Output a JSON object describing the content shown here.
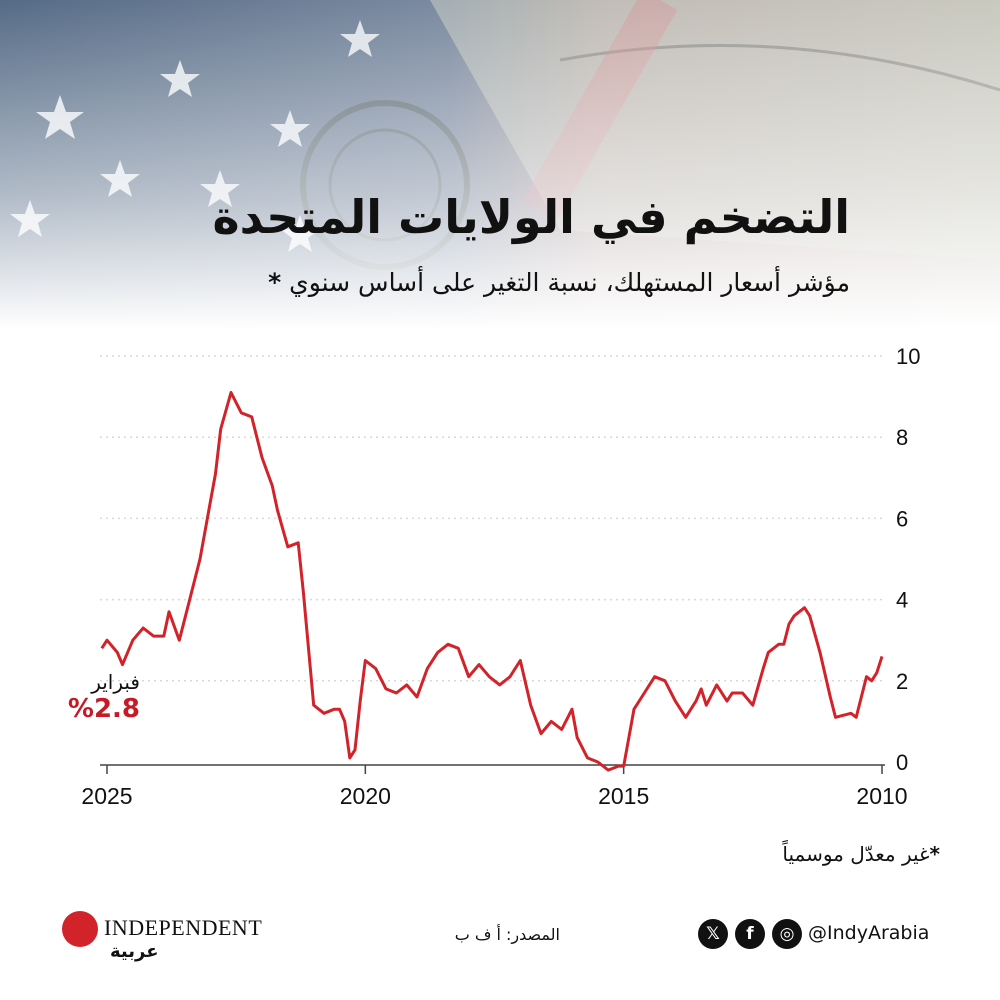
{
  "header": {
    "title": "التضخم في الولايات المتحدة",
    "subtitle": "مؤشر أسعار المستهلك، نسبة التغير على أساس سنوي",
    "subtitle_marker": "*"
  },
  "latest": {
    "label": "فبراير",
    "value": "%2.8"
  },
  "footnote": {
    "marker": "*",
    "text": "غير معدّل موسمياً"
  },
  "footer": {
    "logo_text": "INDEPENDENT",
    "logo_sub": "عربية",
    "source": "المصدر: أ ف ب",
    "handle": "@IndyArabia",
    "icons": [
      "x-icon",
      "facebook-icon",
      "instagram-icon"
    ]
  },
  "colors": {
    "line": "#d2232a",
    "accent": "#c61a27",
    "grid": "#d9d9d9"
  },
  "chart_data": {
    "type": "line",
    "title": "التضخم في الولايات المتحدة",
    "subtitle": "مؤشر أسعار المستهلك، نسبة التغير على أساس سنوي",
    "xlabel": "",
    "ylabel": "",
    "x_axis_direction": "reversed",
    "xlim": [
      2010,
      2025.1
    ],
    "ylim": [
      0,
      10
    ],
    "yticks": [
      0,
      2,
      4,
      6,
      8,
      10
    ],
    "xticks": [
      2025,
      2020,
      2015,
      2010
    ],
    "grid": "horizontal dotted",
    "series": [
      {
        "x": [
          2010.0,
          2010.1,
          2010.2,
          2010.3,
          2010.5,
          2010.6,
          2010.9,
          2011.0,
          2011.2,
          2011.4,
          2011.5,
          2011.7,
          2011.8,
          2011.9,
          2012.0,
          2012.2,
          2012.3,
          2012.5,
          2012.7,
          2012.9,
          2013.0,
          2013.2,
          2013.4,
          2013.5,
          2013.6,
          2013.8,
          2014.0,
          2014.2,
          2014.4,
          2014.6,
          2014.8,
          2015.0,
          2015.1,
          2015.3,
          2015.5,
          2015.7,
          2015.9,
          2016.0,
          2016.2,
          2016.4,
          2016.6,
          2016.8,
          2017.0,
          2017.2,
          2017.4,
          2017.6,
          2017.8,
          2018.0,
          2018.2,
          2018.4,
          2018.6,
          2018.8,
          2019.0,
          2019.2,
          2019.4,
          2019.6,
          2019.8,
          2020.0,
          2020.1,
          2020.2,
          2020.3,
          2020.4,
          2020.5,
          2020.6,
          2020.8,
          2021.0,
          2021.2,
          2021.3,
          2021.5,
          2021.7,
          2021.8,
          2022.0,
          2022.2,
          2022.4,
          2022.6,
          2022.8,
          2022.9,
          2023.0,
          2023.2,
          2023.4,
          2023.6,
          2023.8,
          2023.9,
          2024.1,
          2024.3,
          2024.5,
          2024.7,
          2024.8,
          2025.0,
          2025.1
        ],
        "values": [
          2.6,
          2.2,
          2.0,
          2.1,
          1.1,
          1.2,
          1.1,
          1.6,
          2.7,
          3.6,
          3.8,
          3.6,
          3.4,
          2.9,
          2.9,
          2.7,
          2.3,
          1.4,
          1.7,
          1.7,
          1.5,
          1.9,
          1.4,
          1.8,
          1.5,
          1.1,
          1.5,
          2.0,
          2.1,
          1.7,
          1.3,
          -0.1,
          -0.1,
          -0.2,
          0.0,
          0.1,
          0.6,
          1.3,
          0.8,
          1.0,
          0.7,
          1.4,
          2.5,
          2.1,
          1.9,
          2.1,
          2.4,
          2.1,
          2.8,
          2.9,
          2.7,
          2.3,
          1.6,
          1.9,
          1.7,
          1.8,
          2.3,
          2.5,
          1.5,
          0.3,
          0.1,
          1.0,
          1.3,
          1.3,
          1.2,
          1.4,
          4.2,
          5.4,
          5.3,
          6.2,
          6.8,
          7.5,
          8.5,
          8.6,
          9.1,
          8.2,
          7.1,
          6.4,
          5.0,
          4.0,
          3.0,
          3.7,
          3.1,
          3.1,
          3.3,
          3.0,
          2.4,
          2.7,
          3.0,
          2.8
        ],
        "color": "#d2232a"
      }
    ]
  }
}
